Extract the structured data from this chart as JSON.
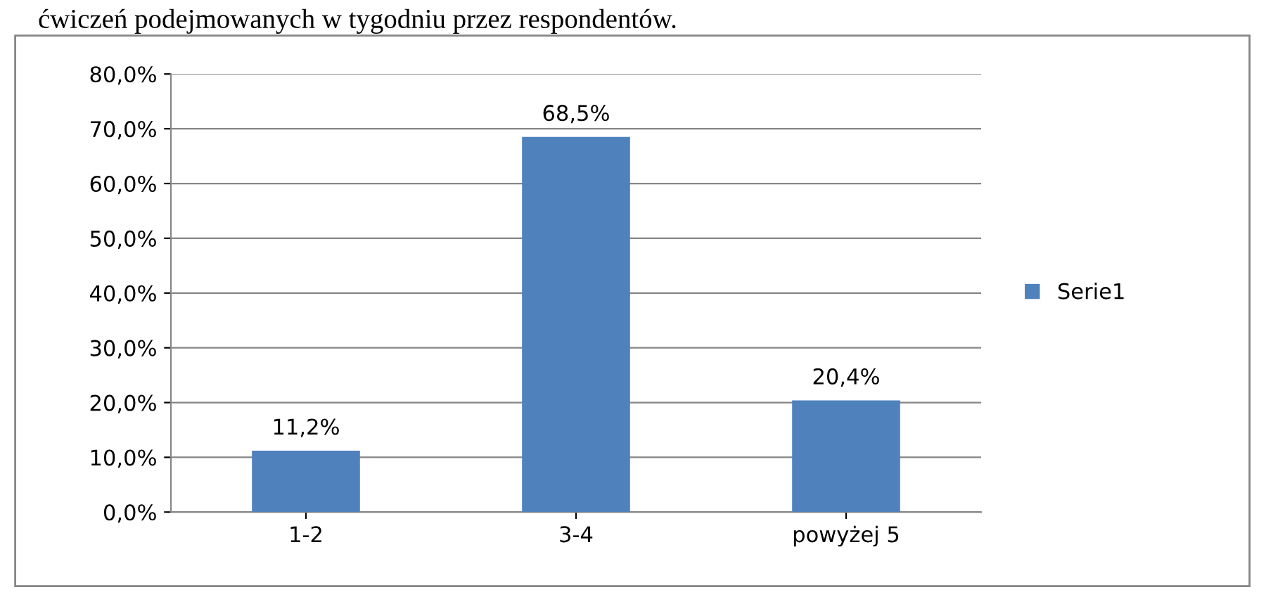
{
  "chart_data": {
    "type": "bar",
    "annotations": [
      "ćwiczeń podejmowanych w tygodniu przez respondentów."
    ],
    "categories": [
      "1-2",
      "3-4",
      "powyżej 5"
    ],
    "series": [
      {
        "name": "Serie1",
        "color": "#4f81bd",
        "values": [
          11.2,
          68.5,
          20.4
        ],
        "value_labels": [
          "11,2%",
          "68,5%",
          "20,4%"
        ]
      }
    ],
    "ylim": [
      0,
      80
    ],
    "yticks": [
      {
        "value": 0,
        "label": "0,0%"
      },
      {
        "value": 10,
        "label": "10,0%"
      },
      {
        "value": 20,
        "label": "20,0%"
      },
      {
        "value": 30,
        "label": "30,0%"
      },
      {
        "value": 40,
        "label": "40,0%"
      },
      {
        "value": 50,
        "label": "50,0%"
      },
      {
        "value": 60,
        "label": "60,0%"
      },
      {
        "value": 70,
        "label": "70,0%"
      },
      {
        "value": 80,
        "label": "80,0%"
      }
    ],
    "grid": "y",
    "legend": "right"
  }
}
